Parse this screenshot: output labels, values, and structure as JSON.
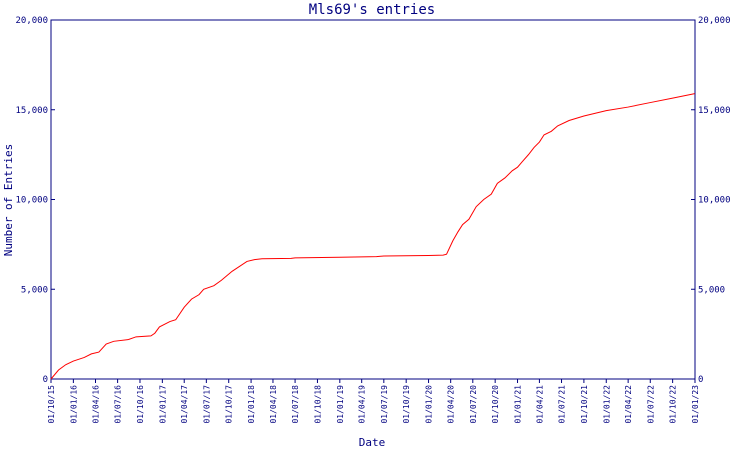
{
  "chart_data": {
    "type": "line",
    "title": "Mls69's entries",
    "xlabel": "Date",
    "ylabel": "Number of Entries",
    "ylim": [
      0,
      20000
    ],
    "y_ticks": [
      {
        "value": 0,
        "label": "0"
      },
      {
        "value": 5000,
        "label": "5,000"
      },
      {
        "value": 10000,
        "label": "10,000"
      },
      {
        "value": 15000,
        "label": "15,000"
      },
      {
        "value": 20000,
        "label": "20,000"
      }
    ],
    "x_ticks": [
      "01/10/15",
      "01/01/16",
      "01/04/16",
      "01/07/16",
      "01/10/16",
      "01/01/17",
      "01/04/17",
      "01/07/17",
      "01/10/17",
      "01/01/18",
      "01/04/18",
      "01/07/18",
      "01/10/18",
      "01/01/19",
      "01/04/19",
      "01/07/19",
      "01/10/19",
      "01/01/20",
      "01/04/20",
      "01/07/20",
      "01/10/20",
      "01/01/21",
      "01/04/21",
      "01/07/21",
      "01/10/21",
      "01/01/22",
      "01/04/22",
      "01/07/22",
      "01/10/22",
      "01/01/23"
    ],
    "grid": false,
    "colors": {
      "axis": "#000080",
      "line": "#ff0000",
      "text": "#000080"
    },
    "series": [
      {
        "points": [
          [
            "2015-10-01",
            0
          ],
          [
            "2015-11-01",
            500
          ],
          [
            "2015-12-01",
            800
          ],
          [
            "2016-01-01",
            1000
          ],
          [
            "2016-02-15",
            1200
          ],
          [
            "2016-03-15",
            1400
          ],
          [
            "2016-04-15",
            1500
          ],
          [
            "2016-05-15",
            1950
          ],
          [
            "2016-06-15",
            2100
          ],
          [
            "2016-08-15",
            2200
          ],
          [
            "2016-09-15",
            2350
          ],
          [
            "2016-11-15",
            2400
          ],
          [
            "2016-12-01",
            2550
          ],
          [
            "2016-12-20",
            2900
          ],
          [
            "2017-02-01",
            3200
          ],
          [
            "2017-02-25",
            3300
          ],
          [
            "2017-04-01",
            4000
          ],
          [
            "2017-05-01",
            4450
          ],
          [
            "2017-06-01",
            4700
          ],
          [
            "2017-06-20",
            5000
          ],
          [
            "2017-08-01",
            5200
          ],
          [
            "2017-09-01",
            5500
          ],
          [
            "2017-10-15",
            6000
          ],
          [
            "2017-12-15",
            6550
          ],
          [
            "2018-01-15",
            6650
          ],
          [
            "2018-02-15",
            6700
          ],
          [
            "2018-06-15",
            6720
          ],
          [
            "2018-07-01",
            6750
          ],
          [
            "2019-01-01",
            6780
          ],
          [
            "2019-06-01",
            6820
          ],
          [
            "2019-07-01",
            6850
          ],
          [
            "2020-01-01",
            6880
          ],
          [
            "2020-03-01",
            6900
          ],
          [
            "2020-03-15",
            6950
          ],
          [
            "2020-04-10",
            7700
          ],
          [
            "2020-05-01",
            8200
          ],
          [
            "2020-05-20",
            8600
          ],
          [
            "2020-06-15",
            8900
          ],
          [
            "2020-07-15",
            9600
          ],
          [
            "2020-08-15",
            10000
          ],
          [
            "2020-09-15",
            10300
          ],
          [
            "2020-10-10",
            10900
          ],
          [
            "2020-11-10",
            11200
          ],
          [
            "2020-12-10",
            11600
          ],
          [
            "2021-01-01",
            11800
          ],
          [
            "2021-01-20",
            12100
          ],
          [
            "2021-02-15",
            12500
          ],
          [
            "2021-03-10",
            12900
          ],
          [
            "2021-04-01",
            13200
          ],
          [
            "2021-04-20",
            13600
          ],
          [
            "2021-05-20",
            13800
          ],
          [
            "2021-06-15",
            14100
          ],
          [
            "2021-08-01",
            14400
          ],
          [
            "2021-10-01",
            14650
          ],
          [
            "2022-01-01",
            14950
          ],
          [
            "2022-04-01",
            15150
          ],
          [
            "2022-07-01",
            15400
          ],
          [
            "2022-10-01",
            15650
          ],
          [
            "2022-12-31",
            15900
          ]
        ]
      }
    ]
  }
}
